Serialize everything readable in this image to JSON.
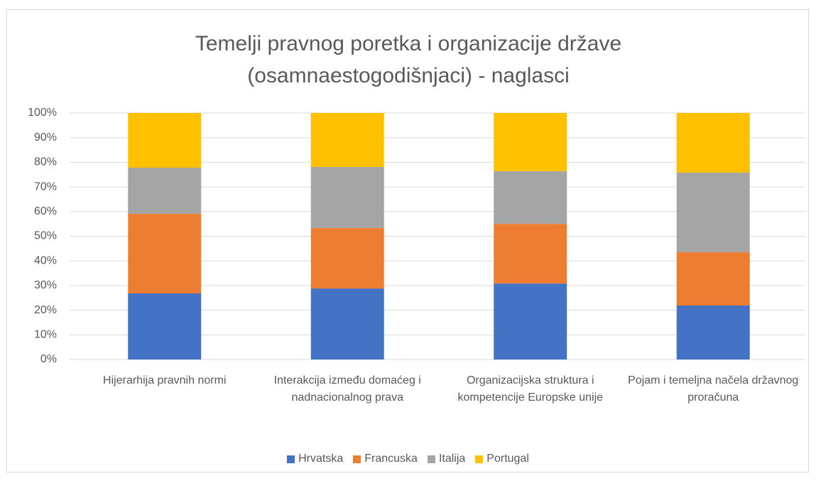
{
  "chart_data": {
    "type": "stacked_bar_100",
    "title": [
      "Temelji pravnog poretka i organizacije države",
      "(osamnaestogodišnjaci) -  naglasci"
    ],
    "categories": [
      "Hijerarhija pravnih normi",
      "Interakcija između domaćeg i nadnacionalnog prava",
      "Organizacijska struktura i kompetencije Europske unije",
      "Pojam i temeljna načela državnog proračuna"
    ],
    "series": [
      {
        "name": "Hrvatska",
        "color": "#4472c4",
        "values": [
          26.8,
          28.8,
          30.8,
          21.9
        ]
      },
      {
        "name": "Francuska",
        "color": "#ed7d31",
        "values": [
          32.3,
          24.5,
          24.2,
          21.6
        ]
      },
      {
        "name": "Italija",
        "color": "#a5a5a5",
        "values": [
          18.7,
          24.8,
          21.4,
          32.3
        ]
      },
      {
        "name": "Portugal",
        "color": "#ffc000",
        "values": [
          22.2,
          21.9,
          23.6,
          24.2
        ]
      }
    ],
    "ylim": [
      0,
      100
    ],
    "yticks": [
      {
        "value": 0,
        "label": "0%"
      },
      {
        "value": 10,
        "label": "10%"
      },
      {
        "value": 20,
        "label": "20%"
      },
      {
        "value": 30,
        "label": "30%"
      },
      {
        "value": 40,
        "label": "40%"
      },
      {
        "value": 50,
        "label": "50%"
      },
      {
        "value": 60,
        "label": "60%"
      },
      {
        "value": 70,
        "label": "70%"
      },
      {
        "value": 80,
        "label": "80%"
      },
      {
        "value": 90,
        "label": "90%"
      },
      {
        "value": 100,
        "label": "100%"
      }
    ],
    "grid": true,
    "legend": "bottom"
  }
}
